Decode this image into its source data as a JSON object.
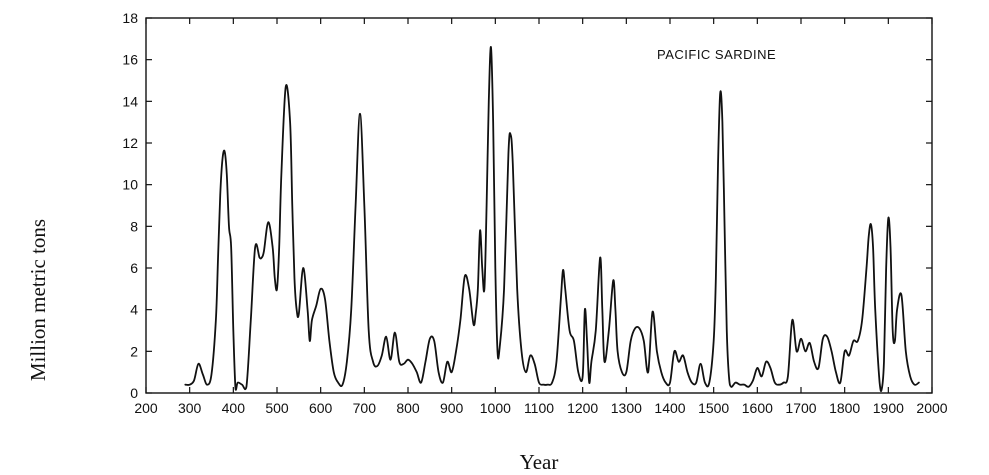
{
  "chart_data": {
    "type": "line",
    "title": "",
    "annotation": "PACIFIC SARDINE",
    "xlabel": "Year",
    "ylabel": "Million  metric tons",
    "xlim": [
      200,
      2000
    ],
    "ylim": [
      0,
      18
    ],
    "xticks": [
      200,
      300,
      400,
      500,
      600,
      700,
      800,
      900,
      1000,
      1100,
      1200,
      1300,
      1400,
      1500,
      1600,
      1700,
      1800,
      1900,
      2000
    ],
    "yticks": [
      0,
      2,
      4,
      6,
      8,
      10,
      12,
      14,
      16,
      18
    ],
    "grid": false,
    "line_color": "#111111",
    "series": [
      {
        "x": [
          290,
          300,
          310,
          320,
          330,
          340,
          350,
          360,
          365,
          370,
          375,
          380,
          385,
          390,
          395,
          400,
          405,
          410,
          420,
          430,
          440,
          450,
          460,
          465,
          470,
          480,
          490,
          495,
          500,
          505,
          510,
          520,
          530,
          535,
          540,
          545,
          550,
          560,
          570,
          575,
          580,
          590,
          600,
          610,
          620,
          630,
          640,
          650,
          660,
          670,
          680,
          690,
          700,
          710,
          720,
          730,
          740,
          750,
          760,
          770,
          780,
          790,
          800,
          810,
          820,
          830,
          840,
          850,
          860,
          870,
          880,
          890,
          900,
          910,
          920,
          930,
          940,
          950,
          955,
          960,
          965,
          970,
          975,
          980,
          985,
          990,
          995,
          1000,
          1005,
          1010,
          1020,
          1030,
          1035,
          1040,
          1050,
          1060,
          1070,
          1080,
          1090,
          1100,
          1110,
          1120,
          1130,
          1140,
          1150,
          1155,
          1160,
          1170,
          1180,
          1190,
          1200,
          1205,
          1210,
          1215,
          1220,
          1230,
          1240,
          1245,
          1250,
          1260,
          1270,
          1275,
          1280,
          1290,
          1300,
          1310,
          1320,
          1330,
          1340,
          1350,
          1360,
          1370,
          1380,
          1390,
          1400,
          1410,
          1420,
          1430,
          1440,
          1450,
          1460,
          1470,
          1480,
          1490,
          1500,
          1505,
          1510,
          1515,
          1520,
          1525,
          1530,
          1535,
          1540,
          1550,
          1560,
          1570,
          1580,
          1590,
          1600,
          1610,
          1620,
          1630,
          1640,
          1650,
          1660,
          1670,
          1680,
          1690,
          1700,
          1710,
          1720,
          1730,
          1740,
          1750,
          1760,
          1770,
          1780,
          1790,
          1800,
          1810,
          1820,
          1830,
          1840,
          1850,
          1855,
          1860,
          1865,
          1870,
          1880,
          1885,
          1890,
          1895,
          1900,
          1905,
          1910,
          1915,
          1920,
          1930,
          1940,
          1950,
          1960,
          1970
        ],
        "y": [
          0.4,
          0.4,
          0.6,
          1.4,
          0.9,
          0.4,
          0.9,
          3.5,
          6.5,
          9.5,
          11.2,
          11.6,
          10.5,
          8.0,
          7.0,
          3.0,
          0.2,
          0.5,
          0.4,
          0.3,
          3.5,
          7.0,
          6.5,
          6.5,
          6.8,
          8.2,
          7.0,
          5.5,
          5.0,
          7.0,
          10.5,
          14.7,
          13.0,
          9.0,
          5.5,
          4.0,
          3.8,
          6.0,
          4.0,
          2.5,
          3.5,
          4.2,
          5.0,
          4.5,
          2.5,
          1.0,
          0.5,
          0.4,
          1.5,
          4.0,
          9.0,
          13.4,
          9.0,
          3.0,
          1.5,
          1.3,
          1.8,
          2.7,
          1.6,
          2.9,
          1.5,
          1.4,
          1.6,
          1.4,
          1.0,
          0.5,
          1.5,
          2.6,
          2.5,
          1.0,
          0.5,
          1.5,
          1.0,
          2.0,
          3.5,
          5.6,
          5.0,
          3.3,
          3.8,
          5.0,
          7.8,
          6.0,
          5.0,
          9.0,
          14.0,
          16.6,
          13.0,
          6.0,
          2.0,
          2.2,
          5.0,
          11.5,
          12.4,
          11.0,
          5.0,
          2.0,
          1.0,
          1.8,
          1.4,
          0.5,
          0.4,
          0.4,
          0.5,
          1.5,
          4.5,
          5.9,
          5.0,
          3.0,
          2.5,
          1.0,
          0.8,
          4.0,
          2.5,
          0.5,
          1.5,
          3.0,
          6.5,
          4.0,
          1.5,
          3.0,
          5.4,
          4.0,
          2.0,
          1.0,
          1.0,
          2.5,
          3.1,
          3.1,
          2.5,
          1.0,
          3.9,
          2.0,
          1.0,
          0.5,
          0.5,
          2.0,
          1.5,
          1.8,
          1.0,
          0.5,
          0.5,
          1.4,
          0.5,
          0.5,
          2.5,
          5.5,
          11.0,
          14.4,
          13.0,
          8.0,
          3.0,
          0.8,
          0.3,
          0.5,
          0.4,
          0.4,
          0.3,
          0.6,
          1.2,
          0.8,
          1.5,
          1.2,
          0.5,
          0.4,
          0.5,
          0.8,
          3.5,
          2.0,
          2.6,
          2.0,
          2.4,
          1.5,
          1.2,
          2.6,
          2.7,
          2.0,
          1.0,
          0.5,
          2.0,
          1.8,
          2.5,
          2.5,
          3.5,
          6.0,
          7.5,
          8.1,
          7.0,
          4.0,
          0.5,
          0.2,
          1.5,
          6.0,
          8.4,
          7.0,
          3.0,
          2.5,
          4.0,
          4.7,
          2.0,
          0.8,
          0.4,
          0.5
        ]
      }
    ]
  }
}
